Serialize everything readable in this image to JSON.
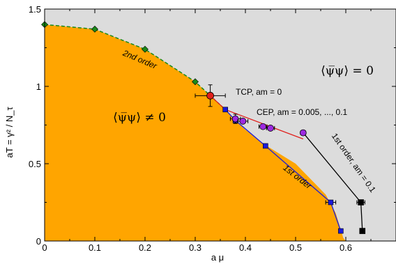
{
  "chart_data": {
    "type": "scatter",
    "xlabel": "a μ",
    "ylabel": "aT = γ² / N_τ",
    "xlim": [
      0,
      0.7
    ],
    "ylim": [
      0,
      1.5
    ],
    "x_ticks": [
      {
        "value": 0,
        "label": "0"
      },
      {
        "value": 0.1,
        "label": "0.1"
      },
      {
        "value": 0.2,
        "label": "0.2"
      },
      {
        "value": 0.3,
        "label": "0.3"
      },
      {
        "value": 0.4,
        "label": "0.4"
      },
      {
        "value": 0.5,
        "label": "0.5"
      },
      {
        "value": 0.6,
        "label": "0.6"
      }
    ],
    "y_ticks": [
      {
        "value": 0,
        "label": "0"
      },
      {
        "value": 0.5,
        "label": "0.5"
      },
      {
        "value": 1,
        "label": "1"
      },
      {
        "value": 1.5,
        "label": "1.5"
      }
    ],
    "regions": [
      {
        "name": "broken",
        "color": "#ffa500"
      },
      {
        "name": "restored",
        "color": "#dcdcdc"
      }
    ],
    "boundary": [
      [
        0,
        1.4
      ],
      [
        0.1,
        1.37
      ],
      [
        0.2,
        1.24
      ],
      [
        0.3,
        1.03
      ],
      [
        0.33,
        0.94
      ],
      [
        0.36,
        0.85
      ],
      [
        0.38,
        0.78
      ],
      [
        0.4,
        0.72
      ],
      [
        0.44,
        0.62
      ],
      [
        0.5,
        0.5
      ],
      [
        0.56,
        0.3
      ],
      [
        0.58,
        0.18
      ],
      [
        0.595,
        0.02
      ],
      [
        0.6,
        0
      ]
    ],
    "series": [
      {
        "type": "green-diamonds",
        "color": "#1a8a1a",
        "points": [
          {
            "x": 0,
            "y": 1.4
          },
          {
            "x": 0.1,
            "y": 1.37
          },
          {
            "x": 0.2,
            "y": 1.24
          },
          {
            "x": 0.3,
            "y": 1.03
          }
        ]
      },
      {
        "type": "red-circle",
        "color": "#e0201c",
        "points": [
          {
            "x": 0.33,
            "y": 0.94,
            "xerr": 0.03,
            "yerr": 0.07
          }
        ]
      },
      {
        "type": "blue-squares",
        "color": "#1a1adc",
        "points": [
          {
            "x": 0.36,
            "y": 0.85
          },
          {
            "x": 0.38,
            "y": 0.78
          },
          {
            "x": 0.44,
            "y": 0.615
          },
          {
            "x": 0.57,
            "y": 0.25,
            "xerr": 0.01
          },
          {
            "x": 0.59,
            "y": 0.065
          }
        ]
      },
      {
        "type": "purple-circles",
        "color": "#9d2ae0",
        "points": [
          {
            "x": 0.38,
            "y": 0.79,
            "xerr": 0.01,
            "yerr": 0.03
          },
          {
            "x": 0.395,
            "y": 0.775,
            "xerr": 0.01
          },
          {
            "x": 0.435,
            "y": 0.74,
            "xerr": 0.008
          },
          {
            "x": 0.45,
            "y": 0.73,
            "xerr": 0.008
          },
          {
            "x": 0.515,
            "y": 0.7,
            "xerr": 0.005
          }
        ]
      },
      {
        "type": "black-squares",
        "color": "#000000",
        "points": [
          {
            "x": 0.63,
            "y": 0.25,
            "xerr": 0.008
          },
          {
            "x": 0.633,
            "y": 0.065
          }
        ]
      }
    ],
    "lines": {
      "dashed_green": [
        [
          0,
          1.4
        ],
        [
          0.1,
          1.37
        ],
        [
          0.2,
          1.24
        ],
        [
          0.3,
          1.03
        ],
        [
          0.33,
          0.94
        ]
      ],
      "black_dashed": [
        [
          0.33,
          0.94
        ],
        [
          0.36,
          0.85
        ]
      ],
      "blue": [
        [
          0.36,
          0.85
        ],
        [
          0.38,
          0.78
        ],
        [
          0.44,
          0.615
        ],
        [
          0.57,
          0.25
        ],
        [
          0.59,
          0.065
        ]
      ],
      "red": [
        [
          0.33,
          0.94
        ],
        [
          0.36,
          0.85
        ],
        [
          0.515,
          0.66
        ]
      ],
      "black": [
        [
          0.515,
          0.7
        ],
        [
          0.63,
          0.25
        ],
        [
          0.633,
          0.065
        ]
      ]
    },
    "annotations": {
      "second_order": "2nd order",
      "first_order": "1st order",
      "tcp": "TCP, am = 0",
      "cep": "CEP, am = 0.005, ..., 0.1",
      "first_order_am": "1st order, am = 0.1",
      "broken_phase": "⟨ψ̅ψ⟩ ≠ 0",
      "restored_phase": "⟨ψ̅ψ⟩ = 0"
    }
  }
}
